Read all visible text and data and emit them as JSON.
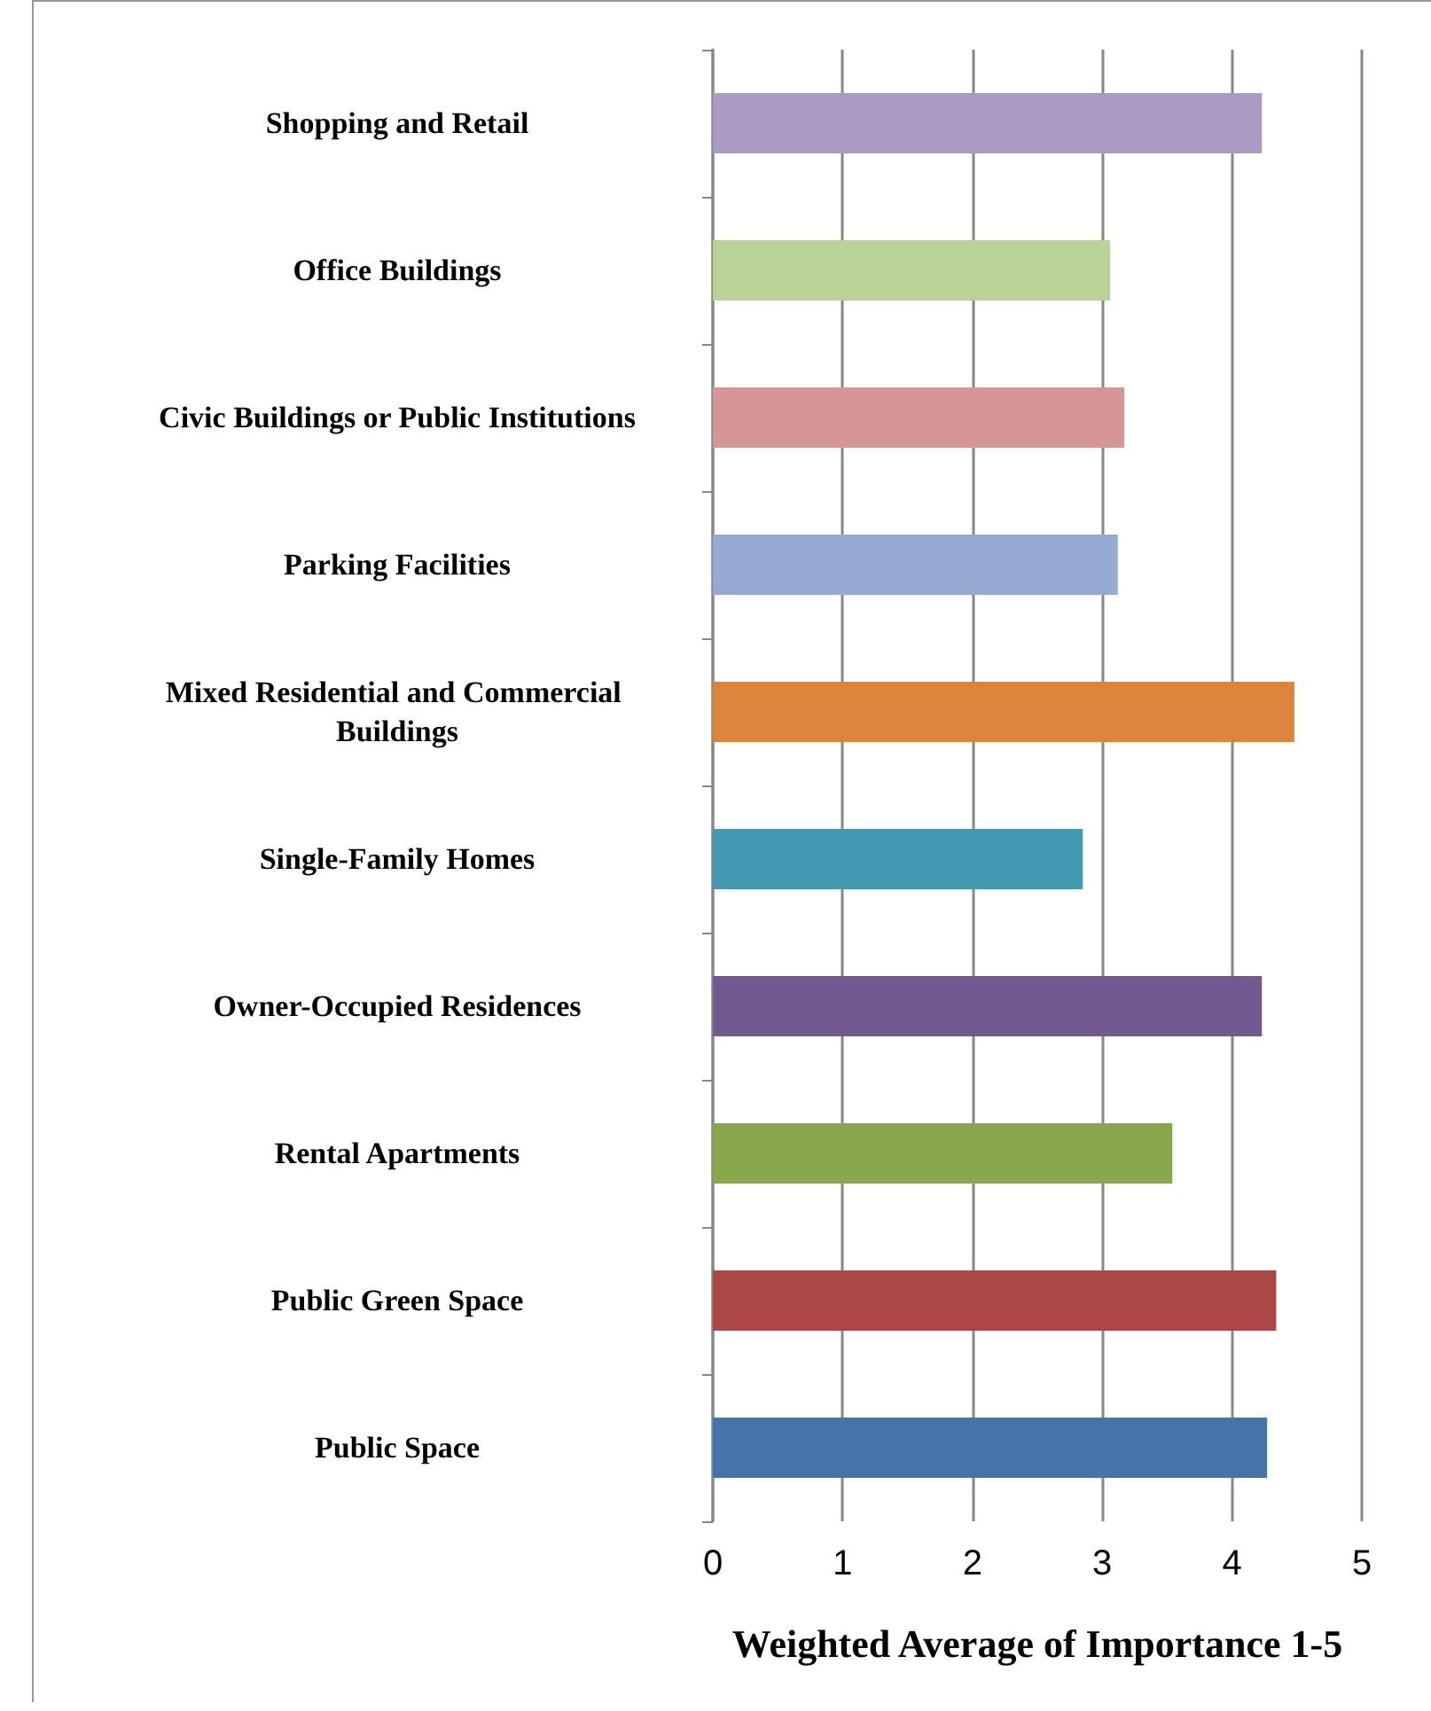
{
  "chart_data": {
    "type": "bar",
    "orientation": "horizontal",
    "xlabel": "Weighted Average of Importance 1-5",
    "categories": [
      "Shopping and Retail",
      "Office Buildings",
      "Civic Buildings or Public Institutions",
      "Parking Facilities",
      "Mixed Residential and Commercial Buildings",
      "Single-Family Homes",
      "Owner-Occupied Residences",
      "Rental Apartments",
      "Public Green Space",
      "Public Space"
    ],
    "values": [
      4.23,
      3.06,
      3.17,
      3.12,
      4.48,
      2.85,
      4.23,
      3.54,
      4.34,
      4.27
    ],
    "colors": [
      "#a99bc2",
      "#b9d097",
      "#d59594",
      "#95abd3",
      "#dd843c",
      "#4299b1",
      "#735a8e",
      "#8ba74e",
      "#aa4846",
      "#4674a9"
    ],
    "xlim": [
      0,
      5
    ],
    "xticks": [
      0,
      1,
      2,
      3,
      4,
      5
    ],
    "grid": "x"
  }
}
